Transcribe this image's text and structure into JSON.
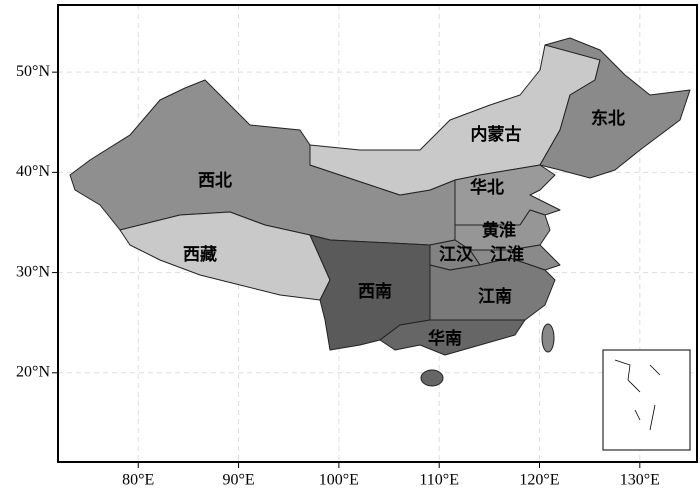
{
  "map": {
    "xlim": [
      72,
      135.7
    ],
    "ylim": [
      11.1,
      56.7
    ],
    "xticks": [
      {
        "value": 80,
        "label": "80°E"
      },
      {
        "value": 90,
        "label": "90°E"
      },
      {
        "value": 100,
        "label": "100°E"
      },
      {
        "value": 110,
        "label": "110°E"
      },
      {
        "value": 120,
        "label": "120°E"
      },
      {
        "value": 130,
        "label": "130°E"
      }
    ],
    "yticks": [
      {
        "value": 20,
        "label": "20°N"
      },
      {
        "value": 30,
        "label": "30°N"
      },
      {
        "value": 40,
        "label": "40°N"
      },
      {
        "value": 50,
        "label": "50°N"
      }
    ],
    "regions": [
      "西北",
      "西藏",
      "内蒙古",
      "东北",
      "华北",
      "黄淮",
      "江汉",
      "江淮",
      "西南",
      "江南",
      "华南"
    ]
  }
}
